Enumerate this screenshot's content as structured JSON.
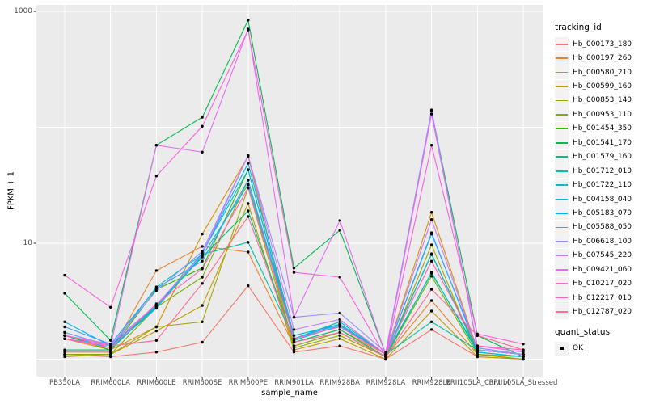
{
  "chart_data": {
    "type": "line",
    "title": "",
    "xlabel": "sample_name",
    "ylabel": "FPKM + 1",
    "y_scale": "log10",
    "ylim": [
      0.78,
      1100
    ],
    "grid": "on",
    "y_gridline_values": [
      1000,
      100,
      10,
      1
    ],
    "y_ticks": [
      {
        "label": "1000",
        "value": 1000
      },
      {
        "label": "10",
        "value": 10
      }
    ],
    "categories": [
      "PB350LA",
      "RRIM600LA",
      "RRIM600LE",
      "RRIM600SE",
      "RRIM600PE",
      "RRIM901LA",
      "RRIM928BA",
      "RRIM928LA",
      "RRIM928LE",
      "RRII105LA_Control",
      "RRII105LA_Stressed"
    ],
    "legend": {
      "title": "tracking_id",
      "position": "right"
    },
    "quant_status": {
      "title": "quant_status",
      "items": [
        "OK"
      ],
      "marker": "black-square-point"
    },
    "series": [
      {
        "name": "Hb_000173_180",
        "color": "#F8766D",
        "values": [
          1.1,
          1.05,
          1.15,
          1.4,
          4.3,
          1.15,
          1.3,
          1.0,
          1.8,
          1.05,
          1.0
        ]
      },
      {
        "name": "Hb_000197_260",
        "color": "#EA8331",
        "values": [
          1.15,
          1.15,
          5.8,
          9.4,
          8.4,
          1.3,
          1.7,
          1.05,
          3.2,
          1.1,
          1.05
        ]
      },
      {
        "name": "Hb_000580_210",
        "color": "#D89000",
        "values": [
          1.5,
          1.2,
          1.9,
          12.0,
          56.0,
          1.4,
          1.8,
          1.1,
          18.5,
          1.2,
          1.1
        ]
      },
      {
        "name": "Hb_000599_160",
        "color": "#C09B00",
        "values": [
          1.05,
          1.1,
          1.75,
          2.9,
          22.0,
          1.2,
          1.5,
          1.0,
          2.6,
          1.05,
          1.0
        ]
      },
      {
        "name": "Hb_000853_140",
        "color": "#A3A500",
        "values": [
          1.1,
          1.1,
          1.9,
          2.1,
          30.0,
          1.25,
          1.6,
          1.05,
          9.7,
          1.1,
          1.05
        ]
      },
      {
        "name": "Hb_000953_110",
        "color": "#7CAE00",
        "values": [
          1.1,
          1.1,
          2.8,
          5.1,
          35.0,
          1.3,
          1.7,
          1.05,
          5.2,
          1.1,
          1.0
        ]
      },
      {
        "name": "Hb_001454_350",
        "color": "#39B600",
        "values": [
          1.6,
          1.2,
          4.0,
          6.1,
          43.0,
          1.5,
          2.0,
          1.1,
          8.0,
          1.2,
          1.1
        ]
      },
      {
        "name": "Hb_001541_170",
        "color": "#00BB4E",
        "values": [
          3.7,
          1.45,
          70.0,
          122.0,
          840.0,
          6.1,
          12.9,
          1.1,
          138.0,
          1.6,
          1.05
        ]
      },
      {
        "name": "Hb_001579_160",
        "color": "#00BF7D",
        "values": [
          1.2,
          1.2,
          2.9,
          7.6,
          19.0,
          1.4,
          1.8,
          1.05,
          5.6,
          1.15,
          1.05
        ]
      },
      {
        "name": "Hb_001712_010",
        "color": "#00C1A3",
        "values": [
          1.6,
          1.25,
          4.2,
          8.0,
          10.2,
          1.5,
          2.1,
          1.1,
          2.1,
          1.2,
          1.1
        ]
      },
      {
        "name": "Hb_001722_110",
        "color": "#00BFC4",
        "values": [
          1.7,
          1.3,
          2.8,
          7.8,
          32.0,
          1.5,
          2.0,
          1.1,
          5.5,
          1.2,
          1.1
        ]
      },
      {
        "name": "Hb_004158_040",
        "color": "#00BAE0",
        "values": [
          1.6,
          1.25,
          2.75,
          8.2,
          43.0,
          1.45,
          1.95,
          1.1,
          8.1,
          1.15,
          1.05
        ]
      },
      {
        "name": "Hb_005183_070",
        "color": "#00B0F6",
        "values": [
          2.1,
          1.3,
          2.9,
          8.2,
          49.0,
          1.6,
          2.0,
          1.1,
          12.3,
          1.2,
          1.1
        ]
      },
      {
        "name": "Hb_005588_050",
        "color": "#35A2FF",
        "values": [
          1.9,
          1.35,
          4.1,
          7.0,
          35.0,
          1.5,
          2.0,
          1.1,
          12.0,
          1.25,
          1.1
        ]
      },
      {
        "name": "Hb_006618_100",
        "color": "#9590FF",
        "values": [
          1.7,
          1.3,
          3.9,
          8.5,
          57.0,
          2.3,
          2.5,
          1.15,
          141.0,
          1.25,
          1.1
        ]
      },
      {
        "name": "Hb_007545_220",
        "color": "#C77CFF",
        "values": [
          1.6,
          1.35,
          2.95,
          8.0,
          57.0,
          1.8,
          2.2,
          1.1,
          16.0,
          1.2,
          1.1
        ]
      },
      {
        "name": "Hb_009421_060",
        "color": "#E76BF3",
        "values": [
          1.5,
          1.3,
          70.0,
          61.0,
          703.0,
          2.3,
          15.7,
          1.1,
          130.0,
          1.3,
          1.15
        ]
      },
      {
        "name": "Hb_010217_020",
        "color": "#FA62DB",
        "values": [
          5.3,
          2.8,
          38.0,
          102.0,
          690.0,
          5.6,
          5.1,
          1.05,
          70.0,
          1.65,
          1.35
        ]
      },
      {
        "name": "Hb_012217_010",
        "color": "#FF62BC",
        "values": [
          1.5,
          1.25,
          3.0,
          6.0,
          30.0,
          1.5,
          1.9,
          1.1,
          7.0,
          1.3,
          1.2
        ]
      },
      {
        "name": "Hb_012787_020",
        "color": "#FF6A98",
        "values": [
          1.6,
          1.3,
          1.45,
          4.5,
          17.0,
          1.4,
          1.7,
          1.05,
          4.0,
          1.6,
          1.2
        ]
      }
    ],
    "panel_background": "#EBEBEB",
    "gridline_color": "#FFFFFF",
    "tick_text_color": "#4d4d4d",
    "point_color": "#000000"
  }
}
